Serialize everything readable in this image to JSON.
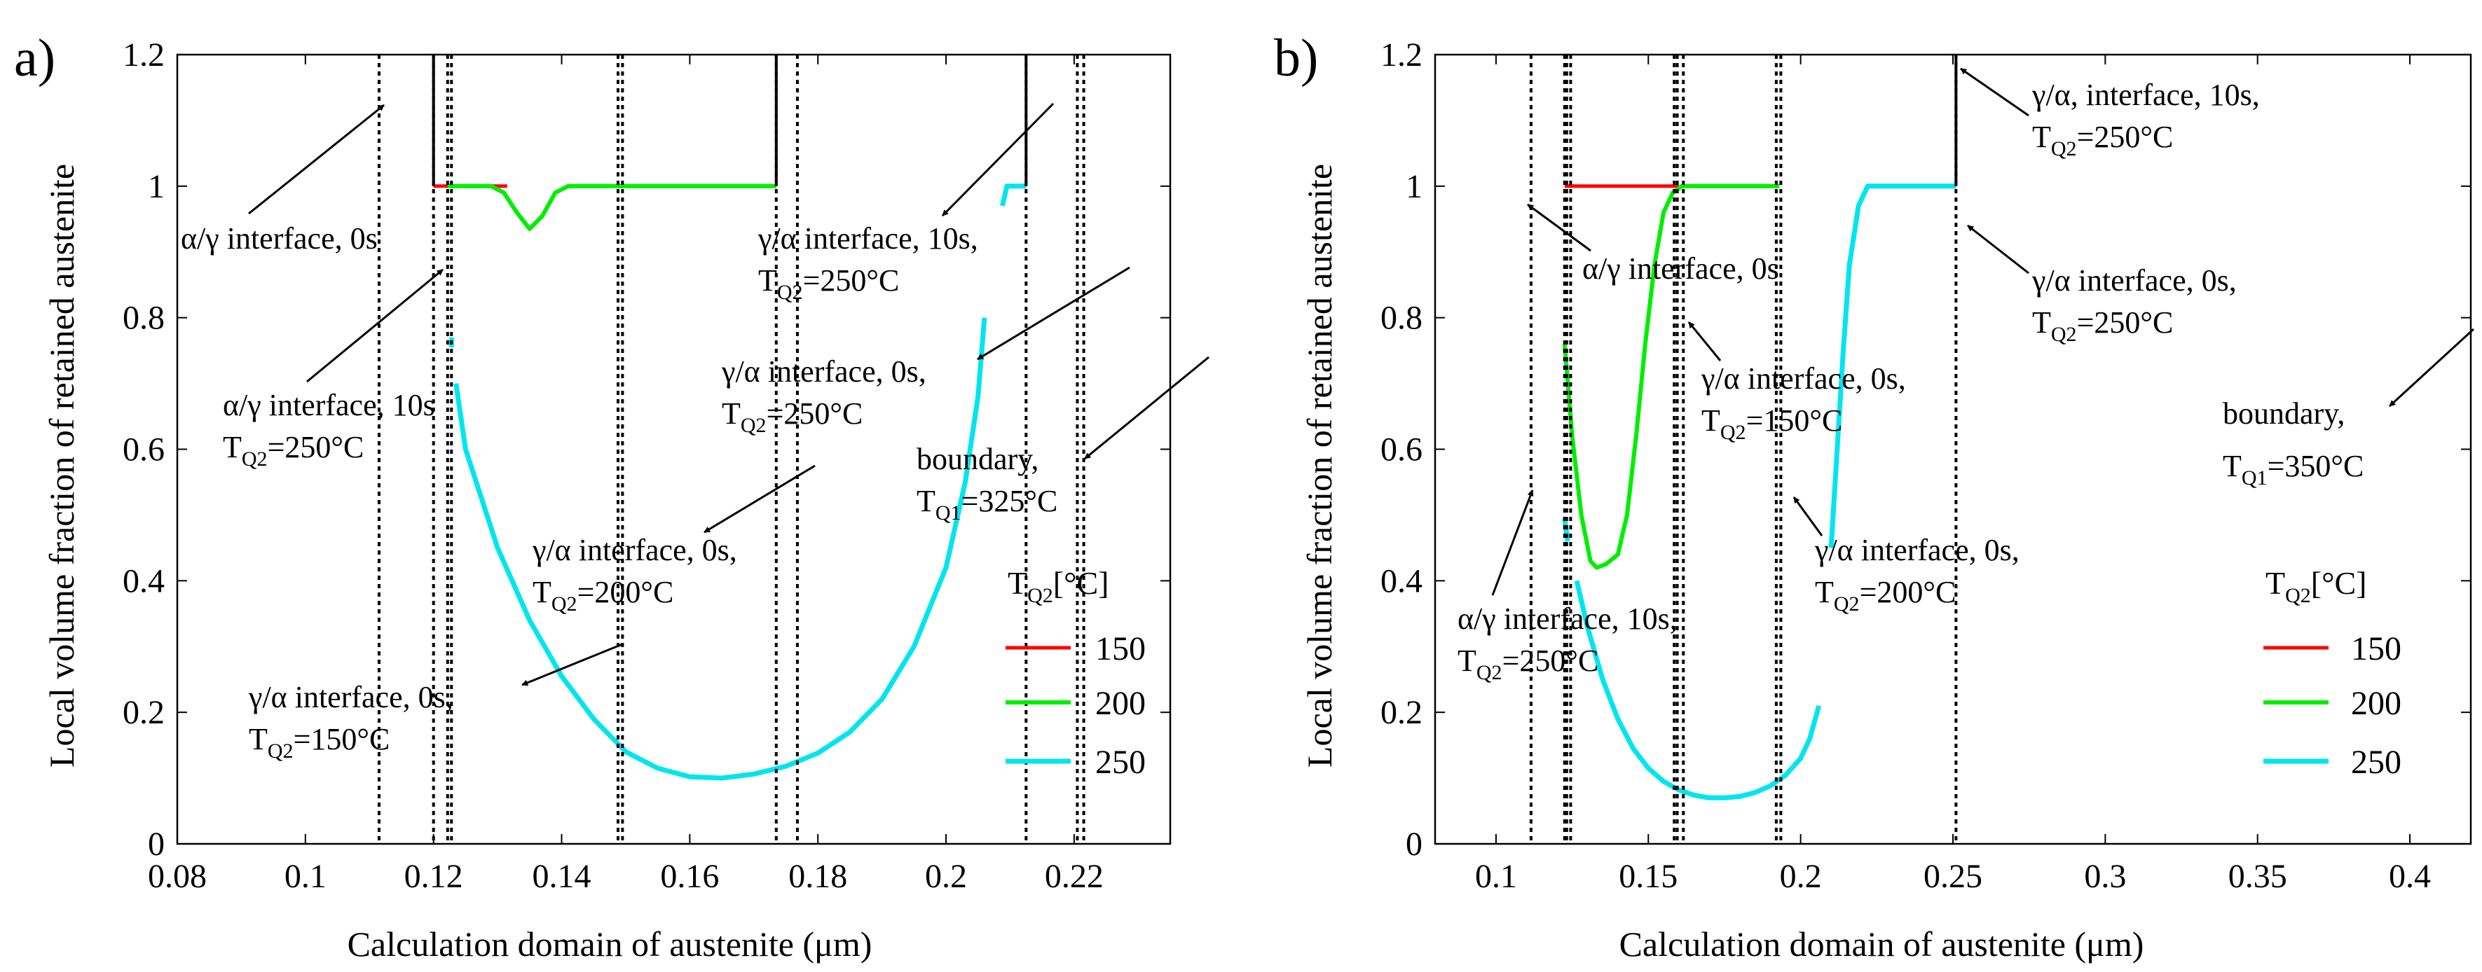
{
  "chart_data": [
    {
      "panel": "a)",
      "type": "line",
      "xlabel": "Calculation domain of austenite (μm)",
      "ylabel": "Local volume fraction of retained austenite",
      "xlim": [
        0.08,
        0.235
      ],
      "ylim": [
        0,
        1.2
      ],
      "xticks": [
        0.08,
        0.1,
        0.12,
        0.14,
        0.16,
        0.18,
        0.2,
        0.22
      ],
      "xtick_labels": [
        "0.08",
        "0.1",
        "0.12",
        "0.14",
        "0.16",
        "0.18",
        "0.2",
        "0.22"
      ],
      "yticks": [
        0,
        0.2,
        0.4,
        0.6,
        0.8,
        1,
        1.2
      ],
      "ytick_labels": [
        "0",
        "0.2",
        "0.4",
        "0.6",
        "0.8",
        "1",
        "1.2"
      ],
      "legend": {
        "title_main": "T",
        "title_sub": "Q2",
        "title_unit": "[°C]",
        "entries": [
          "150",
          "200",
          "250"
        ]
      },
      "series": [
        {
          "name": "150",
          "color": "#ff0000",
          "segments": [
            [
              [
                0.12,
                1.0
              ],
              [
                0.1315,
                1.0
              ]
            ]
          ]
        },
        {
          "name": "200",
          "color": "#00ee00",
          "segments": [
            [
              [
                0.1222,
                1.0
              ],
              [
                0.129,
                1.0
              ],
              [
                0.131,
                0.99
              ],
              [
                0.133,
                0.96
              ],
              [
                0.135,
                0.935
              ],
              [
                0.137,
                0.955
              ],
              [
                0.139,
                0.99
              ],
              [
                0.141,
                1.0
              ],
              [
                0.1735,
                1.0
              ]
            ]
          ]
        },
        {
          "name": "250",
          "color": "#00e5ee",
          "segments": [
            [
              [
                0.1228,
                0.77
              ],
              [
                0.1228,
                0.755
              ]
            ],
            [
              [
                0.1235,
                0.7
              ],
              [
                0.125,
                0.6
              ],
              [
                0.13,
                0.45
              ],
              [
                0.135,
                0.34
              ],
              [
                0.14,
                0.255
              ],
              [
                0.145,
                0.19
              ],
              [
                0.15,
                0.14
              ],
              [
                0.155,
                0.115
              ],
              [
                0.16,
                0.102
              ],
              [
                0.165,
                0.1
              ],
              [
                0.17,
                0.106
              ],
              [
                0.175,
                0.118
              ],
              [
                0.18,
                0.138
              ],
              [
                0.185,
                0.17
              ],
              [
                0.19,
                0.22
              ],
              [
                0.195,
                0.3
              ],
              [
                0.2,
                0.42
              ],
              [
                0.203,
                0.55
              ],
              [
                0.205,
                0.68
              ],
              [
                0.206,
                0.8
              ]
            ],
            [
              [
                0.2088,
                0.97
              ],
              [
                0.2095,
                1.0
              ],
              [
                0.2125,
                1.0
              ]
            ]
          ]
        }
      ],
      "vlines": [
        0.1115,
        0.12,
        0.1222,
        0.1228,
        0.1488,
        0.1495,
        0.1735,
        0.1768,
        0.2125,
        0.2205,
        0.2215
      ],
      "interface_ticks": [
        {
          "x": 0.12,
          "y0": 1.0,
          "y1": 1.2
        },
        {
          "x": 0.1735,
          "y0": 1.0,
          "y1": 1.2
        },
        {
          "x": 0.2125,
          "y0": 1.0,
          "y1": 1.2
        }
      ],
      "annotations": [
        {
          "main": "α/γ interface, 0s",
          "pre": "",
          "sub": "",
          "post": ""
        },
        {
          "main": "α/γ interface, 10s",
          "pre": "T",
          "sub": "Q2",
          "post": "=250°C"
        },
        {
          "main": "γ/α interface, 10s,",
          "pre": "T",
          "sub": "Q2",
          "post": "=250°C"
        },
        {
          "main": "γ/α interface, 0s,",
          "pre": "T",
          "sub": "Q2",
          "post": "=250°C"
        },
        {
          "main": "boundary,",
          "pre": "T",
          "sub": "Q1",
          "post": "=325°C"
        },
        {
          "main": "γ/α interface, 0s,",
          "pre": "T",
          "sub": "Q2",
          "post": "=200°C"
        },
        {
          "main": "γ/α interface, 0s,",
          "pre": "T",
          "sub": "Q2",
          "post": "=150°C"
        }
      ]
    },
    {
      "panel": "b)",
      "type": "line",
      "xlabel": "Calculation domain of austenite (μm)",
      "ylabel": "Local volume fraction of retained austenite",
      "xlim": [
        0.08,
        0.42
      ],
      "ylim": [
        0,
        1.2
      ],
      "xticks": [
        0.1,
        0.15,
        0.2,
        0.25,
        0.3,
        0.35,
        0.4
      ],
      "xtick_labels": [
        "0.1",
        "0.15",
        "0.2",
        "0.25",
        "0.3",
        "0.35",
        "0.4"
      ],
      "yticks": [
        0,
        0.2,
        0.4,
        0.6,
        0.8,
        1,
        1.2
      ],
      "ytick_labels": [
        "0",
        "0.2",
        "0.4",
        "0.6",
        "0.8",
        "1",
        "1.2"
      ],
      "legend": {
        "title_main": "T",
        "title_sub": "Q2",
        "title_unit": "[°C]",
        "entries": [
          "150",
          "200",
          "250"
        ]
      },
      "series": [
        {
          "name": "150",
          "color": "#ff0000",
          "segments": [
            [
              [
                0.1225,
                1.0
              ],
              [
                0.16,
                1.0
              ]
            ]
          ]
        },
        {
          "name": "200",
          "color": "#00ee00",
          "segments": [
            [
              [
                0.1225,
                0.76
              ],
              [
                0.125,
                0.62
              ],
              [
                0.128,
                0.5
              ],
              [
                0.131,
                0.43
              ],
              [
                0.133,
                0.42
              ],
              [
                0.136,
                0.425
              ],
              [
                0.14,
                0.44
              ],
              [
                0.143,
                0.5
              ],
              [
                0.146,
                0.62
              ],
              [
                0.149,
                0.76
              ],
              [
                0.152,
                0.88
              ],
              [
                0.155,
                0.96
              ],
              [
                0.158,
                0.99
              ],
              [
                0.161,
                1.0
              ],
              [
                0.193,
                1.0
              ]
            ]
          ]
        },
        {
          "name": "250",
          "color": "#00e5ee",
          "segments": [
            [
              [
                0.1225,
                0.495
              ],
              [
                0.1235,
                0.46
              ]
            ],
            [
              [
                0.1265,
                0.4
              ],
              [
                0.13,
                0.33
              ],
              [
                0.135,
                0.25
              ],
              [
                0.14,
                0.19
              ],
              [
                0.145,
                0.145
              ],
              [
                0.15,
                0.115
              ],
              [
                0.155,
                0.095
              ],
              [
                0.16,
                0.082
              ],
              [
                0.165,
                0.074
              ],
              [
                0.17,
                0.07
              ],
              [
                0.175,
                0.07
              ],
              [
                0.18,
                0.072
              ],
              [
                0.185,
                0.078
              ],
              [
                0.19,
                0.088
              ],
              [
                0.195,
                0.104
              ],
              [
                0.2,
                0.13
              ],
              [
                0.203,
                0.16
              ],
              [
                0.206,
                0.21
              ]
            ],
            [
              [
                0.21,
                0.45
              ],
              [
                0.212,
                0.6
              ],
              [
                0.214,
                0.75
              ],
              [
                0.216,
                0.88
              ],
              [
                0.219,
                0.97
              ],
              [
                0.222,
                1.0
              ],
              [
                0.251,
                1.0
              ]
            ]
          ]
        }
      ],
      "vlines": [
        0.1115,
        0.1225,
        0.1232,
        0.1245,
        0.1585,
        0.1595,
        0.1615,
        0.192,
        0.1935,
        0.251
      ],
      "interface_ticks": [
        {
          "x": 0.251,
          "y0": 1.0,
          "y1": 1.2
        }
      ],
      "annotations": [
        {
          "main": "γ/α, interface, 10s,",
          "pre": "T",
          "sub": "Q2",
          "post": "=250°C"
        },
        {
          "main": "α/γ interface, 0s",
          "pre": "",
          "sub": "",
          "post": ""
        },
        {
          "main": "γ/α interface, 0s,",
          "pre": "T",
          "sub": "Q2",
          "post": "=250°C"
        },
        {
          "main": "γ/α interface, 0s,",
          "pre": "T",
          "sub": "Q2",
          "post": "=150°C"
        },
        {
          "main": "boundary,",
          "pre": "T",
          "sub": "Q1",
          "post": "=350°C"
        },
        {
          "main": "γ/α interface, 0s,",
          "pre": "T",
          "sub": "Q2",
          "post": "=200°C"
        },
        {
          "main": "α/γ interface, 10s,",
          "pre": "T",
          "sub": "Q2",
          "post": "=250°C"
        }
      ]
    }
  ]
}
